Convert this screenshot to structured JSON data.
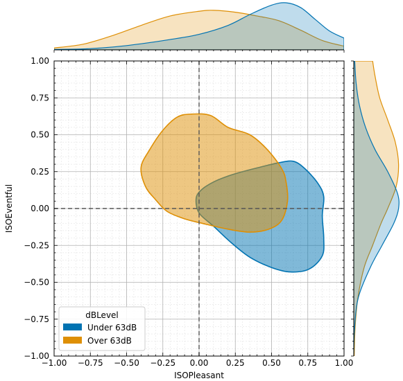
{
  "chart_data": {
    "type": "kde-joint",
    "xlabel": "ISOPleasant",
    "ylabel": "ISOEventful",
    "xlim": [
      -1.0,
      1.0
    ],
    "ylim": [
      -1.0,
      1.0
    ],
    "xticks": [
      "−1.00",
      "−0.75",
      "−0.50",
      "−0.25",
      "0.00",
      "0.25",
      "0.50",
      "0.75",
      "1.00"
    ],
    "yticks": [
      "−1.00",
      "−0.75",
      "−0.50",
      "−0.25",
      "0.00",
      "0.25",
      "0.50",
      "0.75",
      "1.00"
    ],
    "grid": true,
    "legend": {
      "title": "dBLevel",
      "placement": "lower-left",
      "entries": [
        "Under 63dB",
        "Over 63dB"
      ]
    },
    "series": [
      {
        "name": "Under 63dB",
        "color": "#0173b2",
        "contour": [
          [
            -0.02,
            0.07
          ],
          [
            0.02,
            0.13
          ],
          [
            0.1,
            0.18
          ],
          [
            0.2,
            0.22
          ],
          [
            0.3,
            0.25
          ],
          [
            0.42,
            0.28
          ],
          [
            0.55,
            0.31
          ],
          [
            0.65,
            0.32
          ],
          [
            0.73,
            0.27
          ],
          [
            0.82,
            0.17
          ],
          [
            0.86,
            0.08
          ],
          [
            0.85,
            -0.05
          ],
          [
            0.86,
            -0.2
          ],
          [
            0.85,
            -0.32
          ],
          [
            0.76,
            -0.41
          ],
          [
            0.63,
            -0.43
          ],
          [
            0.5,
            -0.4
          ],
          [
            0.35,
            -0.33
          ],
          [
            0.22,
            -0.23
          ],
          [
            0.1,
            -0.12
          ],
          [
            0.0,
            -0.03
          ]
        ],
        "marginal_x": [
          [
            -1.0,
            0.01
          ],
          [
            -0.8,
            0.02
          ],
          [
            -0.6,
            0.06
          ],
          [
            -0.4,
            0.13
          ],
          [
            -0.2,
            0.22
          ],
          [
            0.0,
            0.33
          ],
          [
            0.2,
            0.52
          ],
          [
            0.35,
            0.75
          ],
          [
            0.5,
            0.95
          ],
          [
            0.6,
            1.0
          ],
          [
            0.7,
            0.9
          ],
          [
            0.8,
            0.65
          ],
          [
            0.9,
            0.4
          ],
          [
            1.0,
            0.25
          ]
        ],
        "marginal_y": [
          [
            -1.0,
            0.0
          ],
          [
            -0.8,
            0.02
          ],
          [
            -0.6,
            0.1
          ],
          [
            -0.4,
            0.35
          ],
          [
            -0.25,
            0.6
          ],
          [
            -0.1,
            0.85
          ],
          [
            0.0,
            0.95
          ],
          [
            0.1,
            0.93
          ],
          [
            0.25,
            0.72
          ],
          [
            0.4,
            0.45
          ],
          [
            0.55,
            0.25
          ],
          [
            0.7,
            0.12
          ],
          [
            0.85,
            0.05
          ],
          [
            1.0,
            0.02
          ]
        ]
      },
      {
        "name": "Over 63dB",
        "color": "#de8f05",
        "contour": [
          [
            -0.05,
            0.64
          ],
          [
            0.08,
            0.63
          ],
          [
            0.2,
            0.55
          ],
          [
            0.35,
            0.5
          ],
          [
            0.47,
            0.4
          ],
          [
            0.57,
            0.27
          ],
          [
            0.6,
            0.18
          ],
          [
            0.61,
            0.05
          ],
          [
            0.57,
            -0.08
          ],
          [
            0.48,
            -0.14
          ],
          [
            0.35,
            -0.16
          ],
          [
            0.2,
            -0.14
          ],
          [
            0.02,
            -0.1
          ],
          [
            -0.1,
            -0.07
          ],
          [
            -0.22,
            -0.02
          ],
          [
            -0.3,
            0.06
          ],
          [
            -0.37,
            0.15
          ],
          [
            -0.4,
            0.28
          ],
          [
            -0.34,
            0.4
          ],
          [
            -0.25,
            0.53
          ],
          [
            -0.15,
            0.62
          ]
        ],
        "marginal_x": [
          [
            -1.0,
            0.04
          ],
          [
            -0.8,
            0.12
          ],
          [
            -0.6,
            0.3
          ],
          [
            -0.4,
            0.52
          ],
          [
            -0.2,
            0.72
          ],
          [
            0.0,
            0.82
          ],
          [
            0.1,
            0.84
          ],
          [
            0.25,
            0.8
          ],
          [
            0.4,
            0.72
          ],
          [
            0.55,
            0.62
          ],
          [
            0.7,
            0.42
          ],
          [
            0.85,
            0.2
          ],
          [
            1.0,
            0.08
          ]
        ],
        "marginal_y": [
          [
            -1.0,
            0.01
          ],
          [
            -0.8,
            0.03
          ],
          [
            -0.6,
            0.09
          ],
          [
            -0.4,
            0.22
          ],
          [
            -0.25,
            0.4
          ],
          [
            -0.1,
            0.58
          ],
          [
            0.0,
            0.72
          ],
          [
            0.15,
            0.9
          ],
          [
            0.3,
            0.95
          ],
          [
            0.45,
            0.88
          ],
          [
            0.6,
            0.72
          ],
          [
            0.75,
            0.55
          ],
          [
            0.9,
            0.45
          ],
          [
            1.0,
            0.4
          ]
        ]
      }
    ]
  }
}
